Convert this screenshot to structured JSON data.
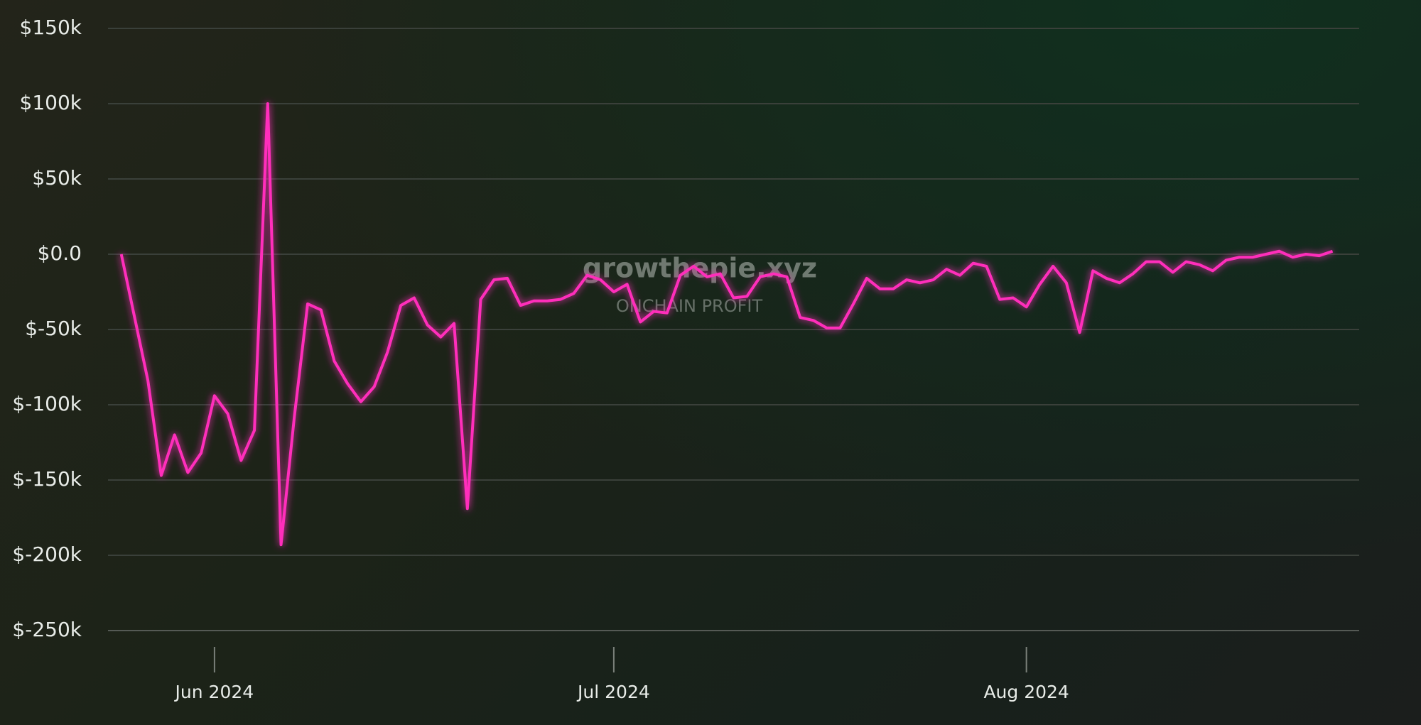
{
  "chart_data": {
    "type": "line",
    "watermark": "growthepie.xyz",
    "subtitle": "ONCHAIN PROFIT",
    "series": [
      {
        "color": "#ff2dbb",
        "values": [
          0,
          -42,
          -84,
          -147,
          -120,
          -145,
          -132,
          -94,
          -106,
          -137,
          -117,
          100,
          -193,
          -108,
          -33,
          -37,
          -71,
          -86,
          -98,
          -88,
          -65,
          -34,
          -29,
          -47,
          -55,
          -46,
          -169,
          -30,
          -17,
          -16,
          -34,
          -31,
          -31,
          -30,
          -26,
          -14,
          -17,
          -25,
          -20,
          -45,
          -38,
          -39,
          -14,
          -8,
          -15,
          -13,
          -29,
          -28,
          -15,
          -13,
          -15,
          -42,
          -44,
          -49,
          -49,
          -33,
          -16,
          -23,
          -23,
          -17,
          -19,
          -17,
          -10,
          -14,
          -6,
          -8,
          -30,
          -29,
          -35,
          -20,
          -8,
          -19,
          -52,
          -11,
          -16,
          -19,
          -13,
          -5,
          -5,
          -12,
          -5,
          -7,
          -11,
          -4,
          -2,
          -2,
          0,
          2,
          -2,
          0,
          -1,
          2
        ]
      }
    ],
    "xlim": [
      -1,
      93
    ],
    "xticks": [
      {
        "value": 7,
        "label": "Jun 2024"
      },
      {
        "value": 37,
        "label": "Jul 2024"
      },
      {
        "value": 68,
        "label": "Aug 2024"
      }
    ],
    "ylim": [
      -250,
      150
    ],
    "yticks": [
      {
        "value": 150,
        "label": "$150k"
      },
      {
        "value": 100,
        "label": "$100k"
      },
      {
        "value": 50,
        "label": "$50k"
      },
      {
        "value": 0,
        "label": "$0.0"
      },
      {
        "value": -50,
        "label": "$-50k"
      },
      {
        "value": -100,
        "label": "$-100k"
      },
      {
        "value": -150,
        "label": "$-150k"
      },
      {
        "value": -200,
        "label": "$-200k"
      },
      {
        "value": -250,
        "label": "$-250k"
      }
    ],
    "grid": true
  }
}
